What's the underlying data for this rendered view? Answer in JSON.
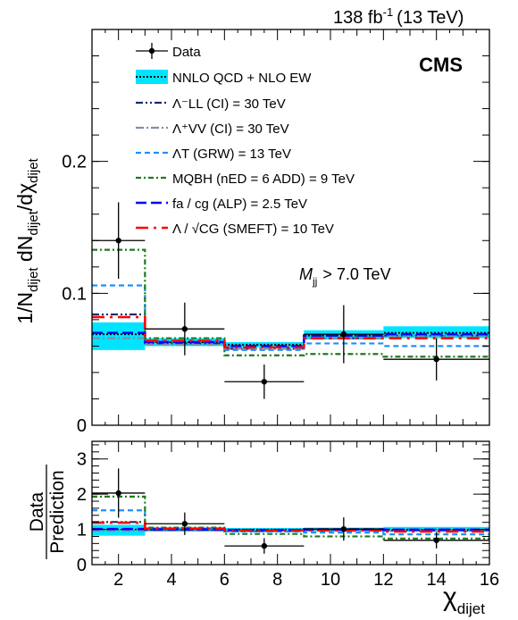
{
  "header": {
    "lumi": "138 fb",
    "lumi_exp": "-1",
    "energy": "(13 TeV)",
    "experiment": "CMS",
    "selection_var": "M",
    "selection_sub": "jj",
    "selection_cut": "> 7.0 TeV"
  },
  "colors": {
    "cyan_band": "#00e5ff",
    "ci_ll": "#1a2a6c",
    "ci_vv": "#7f8fa6",
    "grw": "#1e90ff",
    "qbh": "#1f7a1f",
    "alp": "#0000ff",
    "smeft": "#ff0000"
  },
  "chart_data": [
    {
      "panel": "main",
      "type": "line",
      "ylabel": "1/N_dijet dN_dijet/dχ_dijet",
      "xlim": [
        1,
        16
      ],
      "ylim": [
        0,
        0.3
      ],
      "xticks": [
        2,
        4,
        6,
        8,
        10,
        12,
        14,
        16
      ],
      "yticks": [
        0,
        0.1,
        0.2
      ],
      "ytick_labels": [
        "0",
        "0.1",
        "0.2"
      ],
      "bin_edges": [
        1,
        3,
        6,
        9,
        12,
        16
      ],
      "legend": [
        {
          "key": "data",
          "label": "Data"
        },
        {
          "key": "sm",
          "label": "NNLO QCD + NLO EW"
        },
        {
          "key": "ci_ll",
          "label": "Λ⁻LL (CI) = 30 TeV"
        },
        {
          "key": "ci_vv",
          "label": "Λ⁺VV (CI) = 30 TeV"
        },
        {
          "key": "grw",
          "label": "ΛT (GRW) = 13 TeV"
        },
        {
          "key": "qbh",
          "label": "MQBH (nED = 6 ADD) = 9 TeV"
        },
        {
          "key": "alp",
          "label": "fa / cg (ALP) = 2.5 TeV"
        },
        {
          "key": "smeft",
          "label": "Λ / √CG (SMEFT) = 10 TeV"
        }
      ],
      "data": {
        "x": [
          2,
          4.5,
          7.5,
          10.5,
          14
        ],
        "y": [
          0.14,
          0.073,
          0.033,
          0.069,
          0.05
        ],
        "yerr": [
          0.029,
          0.02,
          0.013,
          0.022,
          0.016
        ],
        "xerr": [
          1,
          1.5,
          1.5,
          1.5,
          2
        ]
      },
      "sm_band": {
        "center": [
          0.069,
          0.063,
          0.061,
          0.068,
          0.07
        ],
        "low": [
          0.057,
          0.06,
          0.059,
          0.065,
          0.066
        ],
        "high": [
          0.078,
          0.066,
          0.063,
          0.072,
          0.075
        ]
      },
      "series": [
        {
          "key": "ci_ll",
          "values": [
            0.084,
            0.062,
            0.058,
            0.066,
            0.068
          ]
        },
        {
          "key": "ci_vv",
          "values": [
            0.066,
            0.061,
            0.058,
            0.066,
            0.068
          ]
        },
        {
          "key": "grw",
          "values": [
            0.106,
            0.064,
            0.057,
            0.062,
            0.06
          ]
        },
        {
          "key": "qbh",
          "values": [
            0.133,
            0.066,
            0.053,
            0.054,
            0.052
          ]
        },
        {
          "key": "alp",
          "values": [
            0.07,
            0.063,
            0.06,
            0.068,
            0.069
          ]
        },
        {
          "key": "smeft",
          "values": [
            0.082,
            0.064,
            0.059,
            0.066,
            0.066
          ]
        }
      ]
    },
    {
      "panel": "ratio",
      "type": "line",
      "ylabel": "Data / Prediction",
      "ylabel_top": "Data",
      "ylabel_bottom": "Prediction",
      "xlabel": "χ",
      "xlabel_sub": "dijet",
      "xlim": [
        1,
        16
      ],
      "ylim": [
        0,
        3.5
      ],
      "xticks": [
        2,
        4,
        6,
        8,
        10,
        12,
        14,
        16
      ],
      "xtick_labels": [
        "2",
        "4",
        "6",
        "8",
        "10",
        "12",
        "14",
        "16"
      ],
      "yticks": [
        0,
        1,
        2,
        3
      ],
      "ytick_labels": [
        "0",
        "1",
        "2",
        "3"
      ],
      "data": {
        "x": [
          2,
          4.5,
          7.5,
          10.5,
          14
        ],
        "y": [
          2.03,
          1.16,
          0.53,
          1.01,
          0.69
        ],
        "yerr": [
          0.7,
          0.32,
          0.22,
          0.33,
          0.23
        ],
        "xerr": [
          1,
          1.5,
          1.5,
          1.5,
          2
        ]
      },
      "sm_band": {
        "low": [
          0.82,
          0.94,
          0.95,
          0.95,
          0.93
        ],
        "high": [
          1.13,
          1.06,
          1.04,
          1.05,
          1.07
        ]
      },
      "series": [
        {
          "key": "ci_ll",
          "values": [
            1.21,
            0.99,
            0.95,
            0.98,
            0.97
          ]
        },
        {
          "key": "ci_vv",
          "values": [
            0.96,
            0.97,
            0.95,
            0.97,
            0.97
          ]
        },
        {
          "key": "grw",
          "values": [
            1.54,
            1.02,
            0.94,
            0.91,
            0.86
          ]
        },
        {
          "key": "qbh",
          "values": [
            1.93,
            1.05,
            0.87,
            0.8,
            0.74
          ]
        },
        {
          "key": "alp",
          "values": [
            1.01,
            1.0,
            0.98,
            1.0,
            0.99
          ]
        },
        {
          "key": "smeft",
          "values": [
            1.19,
            1.02,
            0.97,
            0.97,
            0.94
          ]
        }
      ]
    }
  ]
}
